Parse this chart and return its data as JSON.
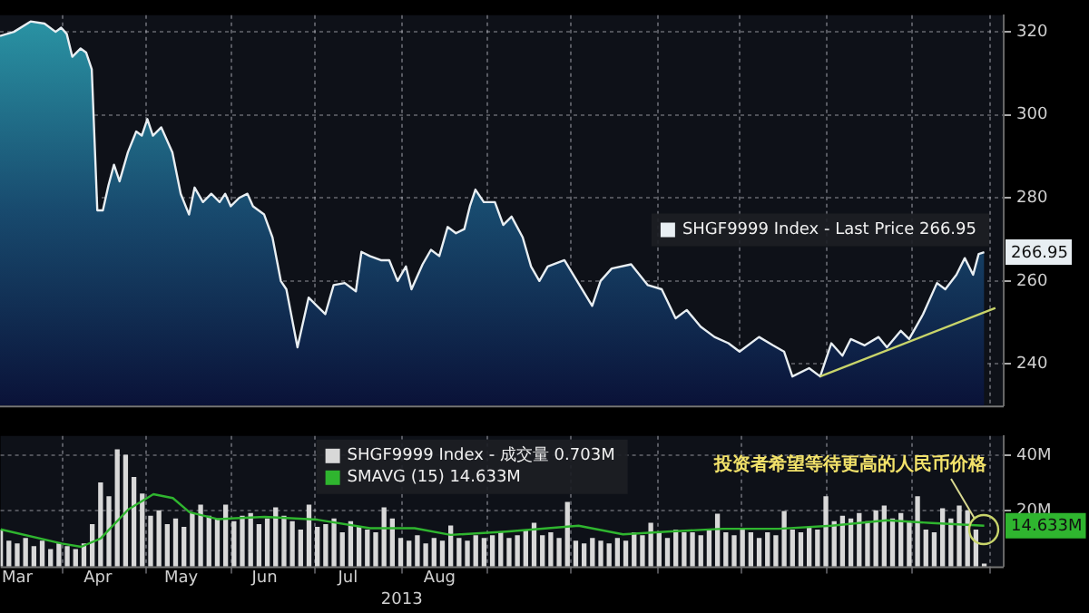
{
  "chart_data": [
    {
      "type": "area",
      "x": [
        "2013-03-10",
        "2013-03-15",
        "2013-03-21",
        "2013-03-26",
        "2013-03-30",
        "2013-04-01",
        "2013-04-03",
        "2013-04-05",
        "2013-04-08",
        "2013-04-10",
        "2013-04-12",
        "2013-04-14",
        "2013-04-16",
        "2013-04-18",
        "2013-04-20",
        "2013-04-22",
        "2013-04-25",
        "2013-04-28",
        "2013-04-30",
        "2013-05-02",
        "2013-05-04",
        "2013-05-07",
        "2013-05-11",
        "2013-05-14",
        "2013-05-17",
        "2013-05-19",
        "2013-05-22",
        "2013-05-25",
        "2013-05-28",
        "2013-05-30",
        "2013-06-01",
        "2013-06-04",
        "2013-06-07",
        "2013-06-09",
        "2013-06-13",
        "2013-06-16",
        "2013-06-19",
        "2013-06-21",
        "2013-06-23",
        "2013-06-25",
        "2013-06-29",
        "2013-07-02",
        "2013-07-05",
        "2013-07-08",
        "2013-07-12",
        "2013-07-16",
        "2013-07-18",
        "2013-07-21",
        "2013-07-25",
        "2013-07-28",
        "2013-07-31",
        "2013-08-03",
        "2013-08-05",
        "2013-08-09",
        "2013-08-12",
        "2013-08-15",
        "2013-08-18",
        "2013-08-21",
        "2013-08-24",
        "2013-08-26",
        "2013-08-28",
        "2013-08-31",
        "2013-09-04",
        "2013-09-07",
        "2013-09-10",
        "2013-09-14",
        "2013-09-17",
        "2013-09-20",
        "2013-09-23",
        "2013-09-29",
        "2013-10-09",
        "2013-10-12",
        "2013-10-16",
        "2013-10-23",
        "2013-10-29",
        "2013-11-03",
        "2013-11-08",
        "2013-11-12",
        "2013-11-17",
        "2013-11-22",
        "2013-11-27",
        "2013-12-01",
        "2013-12-08",
        "2013-12-13",
        "2013-12-17",
        "2013-12-20",
        "2013-12-26",
        "2013-12-30",
        "2014-01-03",
        "2014-01-07",
        "2014-01-10",
        "2014-01-15",
        "2014-01-20",
        "2014-01-23",
        "2014-01-28",
        "2014-01-31",
        "2014-02-05",
        "2014-02-10",
        "2014-02-13",
        "2014-02-17",
        "2014-02-20",
        "2014-02-23",
        "2014-02-25",
        "2014-02-27"
      ],
      "series": [
        {
          "name": "SHGF9999 Index - Last Price 266.95",
          "color": "#e8eef2",
          "values": [
            319,
            320,
            322.5,
            322,
            320,
            321,
            319.5,
            314,
            316,
            315,
            311,
            277,
            277,
            283,
            288,
            284,
            291,
            296,
            295,
            299,
            295,
            297,
            291,
            281,
            276,
            282.5,
            279,
            281,
            279,
            281,
            278,
            280,
            281,
            278,
            276,
            270.5,
            260,
            258,
            251,
            244,
            256,
            254,
            252,
            259,
            259.5,
            257.5,
            267,
            266,
            265,
            265,
            260,
            263.5,
            258,
            264,
            267.5,
            266,
            273,
            271.5,
            272.5,
            278,
            282,
            279,
            279,
            273.5,
            275.5,
            270.5,
            263.5,
            260,
            263.5,
            265,
            254,
            260,
            263,
            264,
            259,
            258,
            251,
            253,
            249,
            246.5,
            245,
            243,
            246.5,
            244.5,
            243,
            237,
            239,
            237,
            245,
            242,
            246,
            244.5,
            246.5,
            244,
            248,
            246,
            252,
            259.5,
            258,
            261.5,
            265.5,
            261.5,
            266.5,
            266.95
          ]
        },
        {
          "type": "line",
          "color": "#c8d46a",
          "x": [
            "2013-12-30",
            "2014-03-03"
          ],
          "values": [
            237,
            253.5
          ]
        }
      ],
      "xlim": [
        "2013-03-10",
        "2014-03-06"
      ],
      "xticks": [
        {
          "value": "2013-04-01",
          "label": null
        },
        {
          "value": "2013-05-01",
          "label": null
        },
        {
          "value": "2013-06-01",
          "label": null
        },
        {
          "value": "2013-07-01",
          "label": null
        },
        {
          "value": "2013-08-01",
          "label": null
        },
        {
          "value": "2013-09-01",
          "label": null
        },
        {
          "value": "2013-10-01",
          "label": null
        },
        {
          "value": "2013-11-01",
          "label": null
        },
        {
          "value": "2013-12-01",
          "label": null
        },
        {
          "value": "2014-01-01",
          "label": null
        },
        {
          "value": "2014-02-01",
          "label": null
        },
        {
          "value": "2014-03-01",
          "label": null
        }
      ],
      "ylim": [
        230,
        324
      ],
      "yticks": [
        240,
        260,
        280,
        300,
        320
      ],
      "grid": true,
      "legend": "right",
      "tick_labels": "y",
      "annotations": [
        {
          "text": "266.95",
          "x": "2014-02-27",
          "y": 266.95
        }
      ]
    },
    {
      "type": "bar",
      "series": [
        {
          "name": "SHGF9999 Index - 成交量 0.703M",
          "color": "#d8d8d8",
          "x": [
            "2013-03-10",
            "2013-03-13",
            "2013-03-16",
            "2013-03-19",
            "2013-03-22",
            "2013-03-25",
            "2013-03-28",
            "2013-03-31",
            "2013-04-03",
            "2013-04-06",
            "2013-04-09",
            "2013-04-12",
            "2013-04-15",
            "2013-04-18",
            "2013-04-21",
            "2013-04-24",
            "2013-04-27",
            "2013-04-30",
            "2013-05-03",
            "2013-05-06",
            "2013-05-09",
            "2013-05-12",
            "2013-05-15",
            "2013-05-18",
            "2013-05-21",
            "2013-05-24",
            "2013-05-27",
            "2013-05-30",
            "2013-06-02",
            "2013-06-05",
            "2013-06-08",
            "2013-06-11",
            "2013-06-14",
            "2013-06-17",
            "2013-06-20",
            "2013-06-23",
            "2013-06-26",
            "2013-06-29",
            "2013-07-02",
            "2013-07-05",
            "2013-07-08",
            "2013-07-11",
            "2013-07-14",
            "2013-07-17",
            "2013-07-20",
            "2013-07-23",
            "2013-07-26",
            "2013-07-29",
            "2013-08-01",
            "2013-08-04",
            "2013-08-07",
            "2013-08-10",
            "2013-08-13",
            "2013-08-16",
            "2013-08-19",
            "2013-08-22",
            "2013-08-25",
            "2013-08-28",
            "2013-08-31",
            "2013-09-03",
            "2013-09-06",
            "2013-09-09",
            "2013-09-12",
            "2013-09-15",
            "2013-09-18",
            "2013-09-21",
            "2013-09-24",
            "2013-09-27",
            "2013-09-30",
            "2013-10-03",
            "2013-10-06",
            "2013-10-09",
            "2013-10-12",
            "2013-10-15",
            "2013-10-18",
            "2013-10-21",
            "2013-10-24",
            "2013-10-27",
            "2013-10-30",
            "2013-11-02",
            "2013-11-05",
            "2013-11-08",
            "2013-11-11",
            "2013-11-14",
            "2013-11-17",
            "2013-11-20",
            "2013-11-23",
            "2013-11-26",
            "2013-11-29",
            "2013-12-02",
            "2013-12-05",
            "2013-12-08",
            "2013-12-11",
            "2013-12-14",
            "2013-12-17",
            "2013-12-20",
            "2013-12-23",
            "2013-12-26",
            "2013-12-29",
            "2014-01-01",
            "2014-01-04",
            "2014-01-07",
            "2014-01-10",
            "2014-01-13",
            "2014-01-16",
            "2014-01-19",
            "2014-01-22",
            "2014-01-25",
            "2014-01-28",
            "2014-01-31",
            "2014-02-03",
            "2014-02-06",
            "2014-02-09",
            "2014-02-12",
            "2014-02-15",
            "2014-02-18",
            "2014-02-21",
            "2014-02-24",
            "2014-02-27"
          ],
          "values": [
            13,
            9,
            8,
            10,
            7,
            9,
            6,
            8,
            7,
            6,
            8,
            15,
            30,
            25,
            42,
            40,
            32,
            26,
            18,
            20,
            15,
            17,
            14,
            19,
            22,
            18,
            17,
            22,
            16,
            18,
            19,
            15,
            17,
            21,
            18,
            16,
            13,
            22,
            14,
            15,
            17,
            12,
            16,
            14,
            13,
            12,
            21,
            17,
            10,
            9,
            11,
            8,
            10,
            9,
            14.5,
            10,
            9,
            11,
            10,
            11,
            12,
            10,
            11,
            13,
            15.5,
            11,
            12,
            10,
            23,
            9,
            8,
            10,
            9,
            8,
            10,
            9,
            12,
            11,
            15.5,
            12,
            10,
            13,
            12,
            12,
            11,
            13,
            18.7,
            12,
            11,
            13,
            12,
            10,
            12,
            11,
            19.7,
            13,
            12,
            14,
            13,
            25,
            16,
            18,
            17,
            19,
            16,
            20,
            21.7,
            17,
            19,
            16,
            25,
            13,
            12,
            20.7,
            17,
            21.7,
            20,
            13,
            0.703
          ]
        },
        {
          "name": "SMAVG (15) 14.633M",
          "type": "line",
          "color": "#2fb52f",
          "x": [
            "2013-03-10",
            "2013-04-01",
            "2013-04-08",
            "2013-04-15",
            "2013-04-25",
            "2013-05-04",
            "2013-05-11",
            "2013-05-17",
            "2013-05-27",
            "2013-06-13",
            "2013-07-02",
            "2013-07-21",
            "2013-08-06",
            "2013-08-19",
            "2013-09-08",
            "2013-10-04",
            "2013-10-20",
            "2013-11-05",
            "2013-11-25",
            "2013-12-15",
            "2014-01-03",
            "2014-01-23",
            "2014-02-08",
            "2014-02-27"
          ],
          "values": [
            13.3,
            8.2,
            7,
            10,
            20.5,
            26,
            24.6,
            19.5,
            17,
            17.8,
            16.8,
            13.7,
            13.7,
            11.3,
            12.5,
            14.6,
            11.5,
            12.5,
            13.5,
            13.5,
            14.6,
            16.6,
            15.6,
            14.633
          ]
        }
      ],
      "xlim": [
        "2013-03-10",
        "2014-03-06"
      ],
      "xticks": [
        {
          "value": "2013-03-16",
          "label": "Mar"
        },
        {
          "value": "2013-04-01",
          "label": null
        },
        {
          "value": "2013-04-14",
          "label": "Apr"
        },
        {
          "value": "2013-05-01",
          "label": null
        },
        {
          "value": "2013-05-14",
          "label": "May"
        },
        {
          "value": "2013-06-01",
          "label": null
        },
        {
          "value": "2013-06-13",
          "label": "Jun"
        },
        {
          "value": "2013-07-01",
          "label": null
        },
        {
          "value": "2013-07-13",
          "label": "Jul"
        },
        {
          "value": "2013-08-01",
          "label": null
        },
        {
          "value": "2013-08-15",
          "label": "Aug"
        },
        {
          "value": "2013-09-01",
          "label": null
        },
        {
          "value": "2013-10-01",
          "label": null
        },
        {
          "value": "2013-11-01",
          "label": null
        },
        {
          "value": "2013-12-01",
          "label": null
        },
        {
          "value": "2014-01-01",
          "label": null
        },
        {
          "value": "2014-02-01",
          "label": null
        },
        {
          "value": "2014-03-01",
          "label": null
        }
      ],
      "ylim": [
        0,
        47
      ],
      "yticks": [
        {
          "value": 20,
          "label": "20M"
        },
        {
          "value": 40,
          "label": "40M"
        }
      ],
      "grid": true,
      "legend": "top",
      "annotations": [
        {
          "text": "14.633M",
          "x": "2014-02-27",
          "y": 14.633
        },
        {
          "text": "投资者希望等待更高的人民币价格",
          "x": "2014-02-24",
          "y": 13
        },
        "2013"
      ]
    }
  ]
}
